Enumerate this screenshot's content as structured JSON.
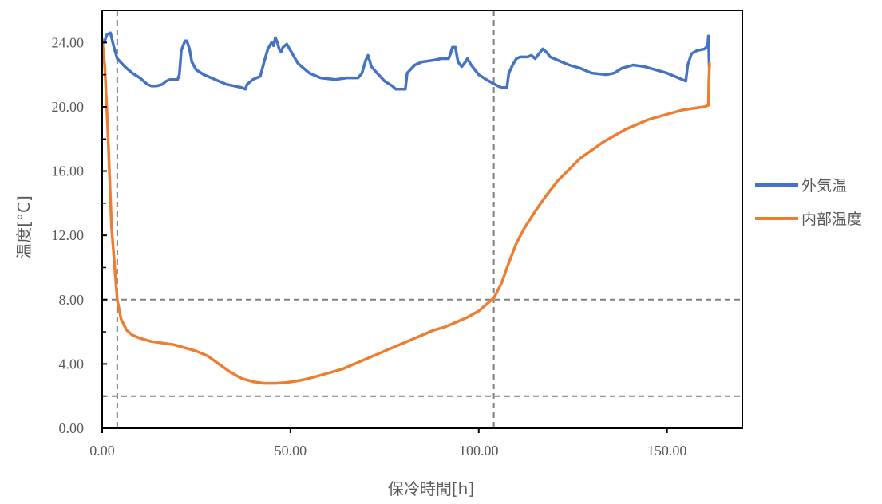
{
  "chart_data": {
    "type": "line",
    "title": "",
    "xlabel": "保冷時間[h]",
    "ylabel": "温度[°C]",
    "xlim": [
      0,
      170
    ],
    "ylim": [
      0,
      26
    ],
    "x_ticks": [
      {
        "value": 0,
        "label": "0.00"
      },
      {
        "value": 50,
        "label": "50.00"
      },
      {
        "value": 100,
        "label": "100.00"
      },
      {
        "value": 150,
        "label": "150.00"
      }
    ],
    "y_ticks": [
      {
        "value": 0,
        "label": "0.00"
      },
      {
        "value": 4,
        "label": "4.00"
      },
      {
        "value": 8,
        "label": "8.00"
      },
      {
        "value": 12,
        "label": "12.00"
      },
      {
        "value": 16,
        "label": "16.00"
      },
      {
        "value": 20,
        "label": "20.00"
      },
      {
        "value": 24,
        "label": "24.00"
      }
    ],
    "grid": false,
    "legend_position": "right",
    "reference_lines": {
      "vertical_x": [
        4,
        104
      ],
      "horizontal_y": [
        8,
        2
      ],
      "color": "#808080",
      "style": "dashed"
    },
    "series": [
      {
        "name": "外気温",
        "color": "#4472C4",
        "points": [
          [
            0,
            24.2
          ],
          [
            0.5,
            24.0
          ],
          [
            1.3,
            24.5
          ],
          [
            2.2,
            24.6
          ],
          [
            3,
            23.8
          ],
          [
            4,
            23.0
          ],
          [
            6,
            22.5
          ],
          [
            8,
            22.1
          ],
          [
            10,
            21.8
          ],
          [
            12,
            21.4
          ],
          [
            13,
            21.3
          ],
          [
            14.5,
            21.3
          ],
          [
            16,
            21.4
          ],
          [
            17,
            21.6
          ],
          [
            18,
            21.7
          ],
          [
            20,
            21.7
          ],
          [
            20.5,
            22.0
          ],
          [
            21,
            23.5
          ],
          [
            22,
            24.1
          ],
          [
            22.5,
            24.1
          ],
          [
            23.2,
            23.6
          ],
          [
            23.8,
            22.8
          ],
          [
            25,
            22.3
          ],
          [
            27,
            22.0
          ],
          [
            30,
            21.7
          ],
          [
            33,
            21.4
          ],
          [
            35,
            21.3
          ],
          [
            37,
            21.2
          ],
          [
            38,
            21.1
          ],
          [
            38.5,
            21.4
          ],
          [
            40,
            21.7
          ],
          [
            42,
            21.9
          ],
          [
            43,
            22.8
          ],
          [
            44,
            23.6
          ],
          [
            45,
            24.0
          ],
          [
            45.5,
            23.8
          ],
          [
            46,
            24.3
          ],
          [
            46.5,
            24.0
          ],
          [
            47,
            23.6
          ],
          [
            47.5,
            23.4
          ],
          [
            48,
            23.7
          ],
          [
            49,
            23.9
          ],
          [
            50,
            23.5
          ],
          [
            52,
            22.7
          ],
          [
            55,
            22.1
          ],
          [
            58,
            21.8
          ],
          [
            62,
            21.7
          ],
          [
            65,
            21.8
          ],
          [
            68,
            21.8
          ],
          [
            69,
            22.1
          ],
          [
            70,
            22.9
          ],
          [
            70.6,
            23.2
          ],
          [
            71.5,
            22.5
          ],
          [
            73,
            22.1
          ],
          [
            75,
            21.6
          ],
          [
            77,
            21.3
          ],
          [
            78,
            21.1
          ],
          [
            79,
            21.1
          ],
          [
            80.5,
            21.1
          ],
          [
            81,
            22.1
          ],
          [
            83,
            22.6
          ],
          [
            85,
            22.8
          ],
          [
            88,
            22.9
          ],
          [
            90,
            23.0
          ],
          [
            92,
            23.0
          ],
          [
            92.5,
            23.3
          ],
          [
            93,
            23.7
          ],
          [
            93.8,
            23.7
          ],
          [
            94.5,
            22.8
          ],
          [
            95.5,
            22.5
          ],
          [
            96.5,
            22.8
          ],
          [
            97,
            23.0
          ],
          [
            98,
            22.6
          ],
          [
            99,
            22.3
          ],
          [
            100,
            22.0
          ],
          [
            102,
            21.7
          ],
          [
            103.5,
            21.5
          ],
          [
            105,
            21.3
          ],
          [
            106,
            21.2
          ],
          [
            107.5,
            21.2
          ],
          [
            108,
            22.1
          ],
          [
            109,
            22.6
          ],
          [
            110,
            23.0
          ],
          [
            111,
            23.1
          ],
          [
            113,
            23.1
          ],
          [
            114,
            23.2
          ],
          [
            115,
            23.0
          ],
          [
            116,
            23.3
          ],
          [
            117,
            23.6
          ],
          [
            118,
            23.4
          ],
          [
            119,
            23.1
          ],
          [
            121,
            22.9
          ],
          [
            124,
            22.6
          ],
          [
            127,
            22.4
          ],
          [
            130,
            22.1
          ],
          [
            134,
            22.0
          ],
          [
            136,
            22.1
          ],
          [
            138,
            22.4
          ],
          [
            141,
            22.6
          ],
          [
            144,
            22.5
          ],
          [
            147,
            22.3
          ],
          [
            150,
            22.1
          ],
          [
            153,
            21.8
          ],
          [
            155,
            21.6
          ],
          [
            155.5,
            22.6
          ],
          [
            156.5,
            23.3
          ],
          [
            158,
            23.5
          ],
          [
            160,
            23.6
          ],
          [
            160.8,
            23.8
          ],
          [
            161,
            24.4
          ],
          [
            161.2,
            22.5
          ]
        ]
      },
      {
        "name": "内部温度",
        "color": "#ED7D31",
        "points": [
          [
            0,
            24.2
          ],
          [
            0.7,
            22.5
          ],
          [
            1.5,
            18.5
          ],
          [
            2.5,
            12.5
          ],
          [
            3.5,
            9.5
          ],
          [
            4,
            8.0
          ],
          [
            5,
            6.8
          ],
          [
            6.5,
            6.1
          ],
          [
            8,
            5.8
          ],
          [
            10,
            5.6
          ],
          [
            13,
            5.4
          ],
          [
            16,
            5.3
          ],
          [
            19,
            5.2
          ],
          [
            22,
            5.0
          ],
          [
            25,
            4.8
          ],
          [
            28,
            4.5
          ],
          [
            31,
            4.0
          ],
          [
            34,
            3.5
          ],
          [
            37,
            3.1
          ],
          [
            40,
            2.9
          ],
          [
            43,
            2.8
          ],
          [
            46,
            2.8
          ],
          [
            49,
            2.85
          ],
          [
            52,
            2.95
          ],
          [
            55,
            3.1
          ],
          [
            58,
            3.3
          ],
          [
            61,
            3.5
          ],
          [
            64,
            3.7
          ],
          [
            67,
            4.0
          ],
          [
            70,
            4.3
          ],
          [
            73,
            4.6
          ],
          [
            76,
            4.9
          ],
          [
            79,
            5.2
          ],
          [
            82,
            5.5
          ],
          [
            85,
            5.8
          ],
          [
            88,
            6.1
          ],
          [
            91,
            6.3
          ],
          [
            94,
            6.6
          ],
          [
            97,
            6.9
          ],
          [
            100,
            7.3
          ],
          [
            102,
            7.7
          ],
          [
            104,
            8.1
          ],
          [
            106,
            9.0
          ],
          [
            108,
            10.3
          ],
          [
            110,
            11.5
          ],
          [
            112,
            12.4
          ],
          [
            115,
            13.5
          ],
          [
            118,
            14.5
          ],
          [
            121,
            15.4
          ],
          [
            124,
            16.1
          ],
          [
            127,
            16.8
          ],
          [
            130,
            17.3
          ],
          [
            133,
            17.8
          ],
          [
            136,
            18.2
          ],
          [
            139,
            18.6
          ],
          [
            142,
            18.9
          ],
          [
            145,
            19.2
          ],
          [
            148,
            19.4
          ],
          [
            151,
            19.6
          ],
          [
            154,
            19.8
          ],
          [
            157,
            19.9
          ],
          [
            160,
            20.0
          ],
          [
            161,
            20.1
          ],
          [
            161.1,
            21.5
          ],
          [
            161.3,
            22.7
          ]
        ]
      }
    ]
  }
}
